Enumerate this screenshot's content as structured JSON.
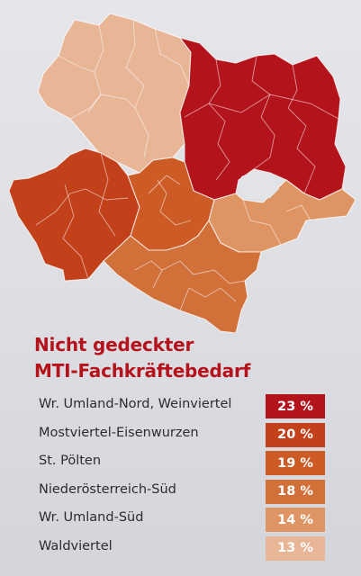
{
  "chart_data": {
    "type": "table",
    "title_line1": "Nicht gedeckter",
    "title_line2": "MTI-Fachkräftebedarf",
    "rows": [
      {
        "label": "Wr. Umland-Nord, Weinviertel",
        "value": 23,
        "display": "23 %",
        "color": "#b3141c"
      },
      {
        "label": "Mostviertel-Eisenwurzen",
        "value": 20,
        "display": "20 %",
        "color": "#c2401a"
      },
      {
        "label": "St. Pölten",
        "value": 19,
        "display": "19 %",
        "color": "#cd5b25"
      },
      {
        "label": "Niederösterreich-Süd",
        "value": 18,
        "display": "18 %",
        "color": "#d2703a"
      },
      {
        "label": "Wr. Umland-Süd",
        "value": 14,
        "display": "14 %",
        "color": "#de9463"
      },
      {
        "label": "Waldviertel",
        "value": 13,
        "display": "13 %",
        "color": "#e8b597"
      }
    ]
  }
}
